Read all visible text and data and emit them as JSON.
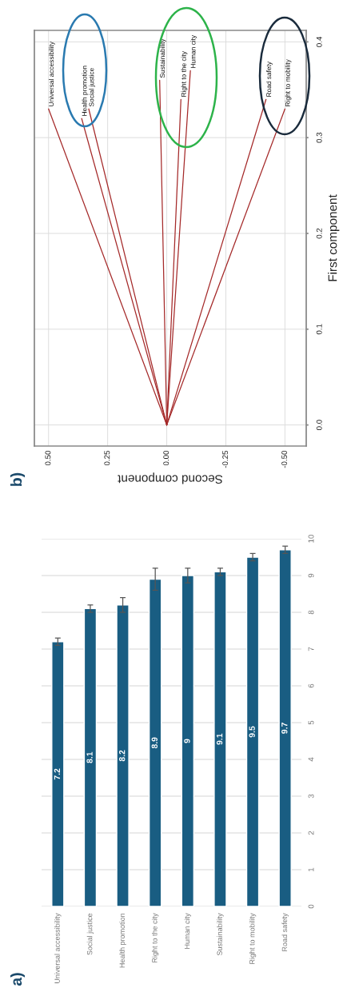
{
  "chart_data": [
    {
      "type": "line",
      "xlabel": "Second component",
      "ylabel": "First component",
      "xlim": [
        0.56,
        -0.59
      ],
      "ylim": [
        -0.022,
        0.412
      ],
      "xticks": [
        {
          "value": 0.5,
          "label": "0.50"
        },
        {
          "value": 0.25,
          "label": "0.25"
        },
        {
          "value": 0,
          "label": "0.00"
        },
        {
          "value": -0.25,
          "label": "-0.25"
        },
        {
          "value": -0.5,
          "label": "-0.50"
        }
      ],
      "yticks": [
        {
          "value": 0,
          "label": "0.0"
        },
        0.1,
        0.2,
        0.3,
        0.4
      ],
      "grid": true,
      "series": [
        {
          "name": "Universal accessibility",
          "color": "#a52a2a",
          "x": [
            0,
            0.5
          ],
          "values": [
            0,
            0.33
          ]
        },
        {
          "name": "Health promotion",
          "color": "#a52a2a",
          "x": [
            0,
            0.36
          ],
          "values": [
            0,
            0.32
          ]
        },
        {
          "name": "Social justice",
          "color": "#a52a2a",
          "x": [
            0,
            0.33
          ],
          "values": [
            0,
            0.33
          ]
        },
        {
          "name": "Sustainability",
          "color": "#a52a2a",
          "x": [
            0,
            0.03
          ],
          "values": [
            0,
            0.36
          ]
        },
        {
          "name": "Right to the city",
          "color": "#a52a2a",
          "x": [
            0,
            -0.06
          ],
          "values": [
            0,
            0.34
          ]
        },
        {
          "name": "Human city",
          "color": "#a52a2a",
          "x": [
            0,
            -0.1
          ],
          "values": [
            0,
            0.37
          ]
        },
        {
          "name": "Road safety",
          "color": "#a52a2a",
          "x": [
            0,
            -0.42
          ],
          "values": [
            0,
            0.34
          ]
        },
        {
          "name": "Right to mobility",
          "color": "#a52a2a",
          "x": [
            0,
            -0.5
          ],
          "values": [
            0,
            0.33
          ]
        }
      ],
      "annotations": [
        "b)"
      ]
    },
    {
      "type": "bar",
      "categories": [
        "Universal accessibility",
        "Social justice",
        "Health promotion",
        "Right to the city",
        "Human city",
        "Sustainability",
        "Right to mobility",
        "Road safety"
      ],
      "values": [
        7.2,
        8.1,
        8.2,
        8.9,
        9,
        9.1,
        9.5,
        9.7
      ],
      "errors": [
        0.1,
        0.1,
        0.2,
        0.3,
        0.2,
        0.1,
        0.1,
        0.1
      ],
      "color": "#195d82",
      "ylim": [
        0,
        10
      ],
      "yticks": [
        0,
        1,
        2,
        3,
        4,
        5,
        6,
        7,
        8,
        9,
        10
      ],
      "grid": "y",
      "data_labels": true,
      "annotations": [
        "a)"
      ]
    }
  ]
}
